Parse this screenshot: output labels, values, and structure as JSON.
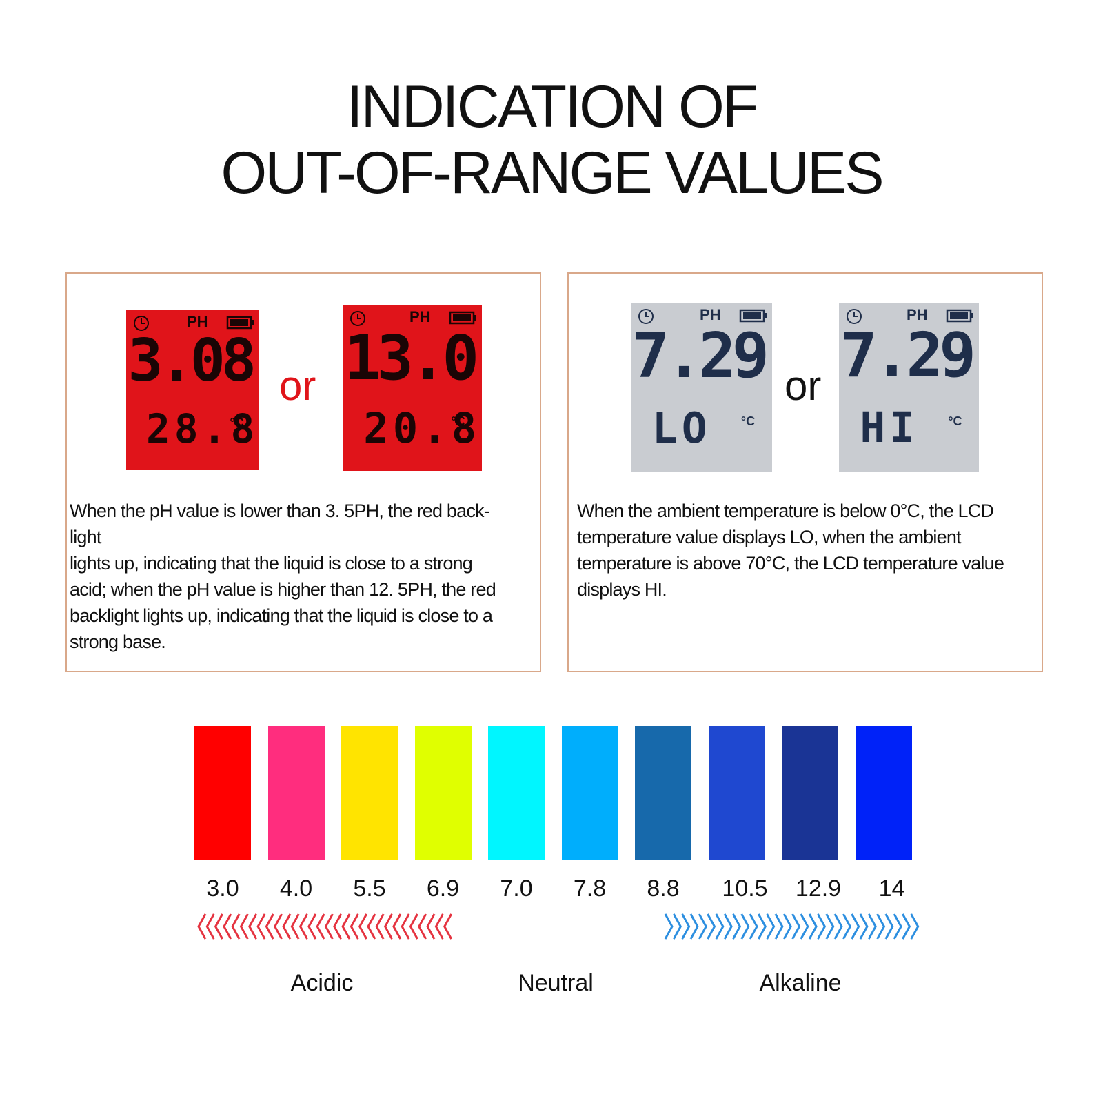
{
  "header": {
    "title_lines": [
      "INDICATION OF",
      "OUT-OF-RANGE VALUES"
    ]
  },
  "panels": [
    {
      "displays": [
        {
          "label": "PH",
          "value": "3.08",
          "temperature": "28.8",
          "unit": "°C",
          "background": "#e0141a",
          "ink": "#1a0505"
        },
        {
          "label": "PH",
          "value": "13.0",
          "temperature": "20.8",
          "unit": "°C",
          "background": "#e0141a",
          "ink": "#1a0505"
        }
      ],
      "connector": "or",
      "connector_color": "#e0141a",
      "description_lines": [
        "When the pH value is lower than 3. 5PH, the red back-",
        "light",
        "lights up, indicating that the liquid is close to a strong",
        "acid; when the pH value is higher than 12. 5PH, the red",
        "backlight lights up, indicating that the liquid is close to a",
        "strong base."
      ]
    },
    {
      "displays": [
        {
          "label": "PH",
          "value": "7.29",
          "temperature": "LO",
          "unit": "°C",
          "background": "#c9ccd1",
          "ink": "#1f2e4a"
        },
        {
          "label": "PH",
          "value": "7.29",
          "temperature": "HI",
          "unit": "°C",
          "background": "#c9ccd1",
          "ink": "#1f2e4a"
        }
      ],
      "connector": "or",
      "connector_color": "#111111",
      "description_lines": [
        "When the ambient temperature is below 0°C, the LCD",
        "temperature value displays LO, when the ambient",
        "temperature is above 70°C, the LCD temperature value",
        "displays HI."
      ]
    }
  ],
  "scale": {
    "swatches": [
      {
        "label": "3.0",
        "color": "#ff0000"
      },
      {
        "label": "4.0",
        "color": "#ff2d7e"
      },
      {
        "label": "5.5",
        "color": "#ffe400"
      },
      {
        "label": "6.9",
        "color": "#e0ff00"
      },
      {
        "label": "7.0",
        "color": "#00f6ff"
      },
      {
        "label": "7.8",
        "color": "#00aefc"
      },
      {
        "label": "8.8",
        "color": "#1769ab"
      },
      {
        "label": "10.5",
        "color": "#1f48d0"
      },
      {
        "label": "12.9",
        "color": "#1a3495"
      },
      {
        "label": "14",
        "color": "#0022f8"
      }
    ],
    "zones": [
      "Acidic",
      "Neutral",
      "Alkaline"
    ]
  }
}
